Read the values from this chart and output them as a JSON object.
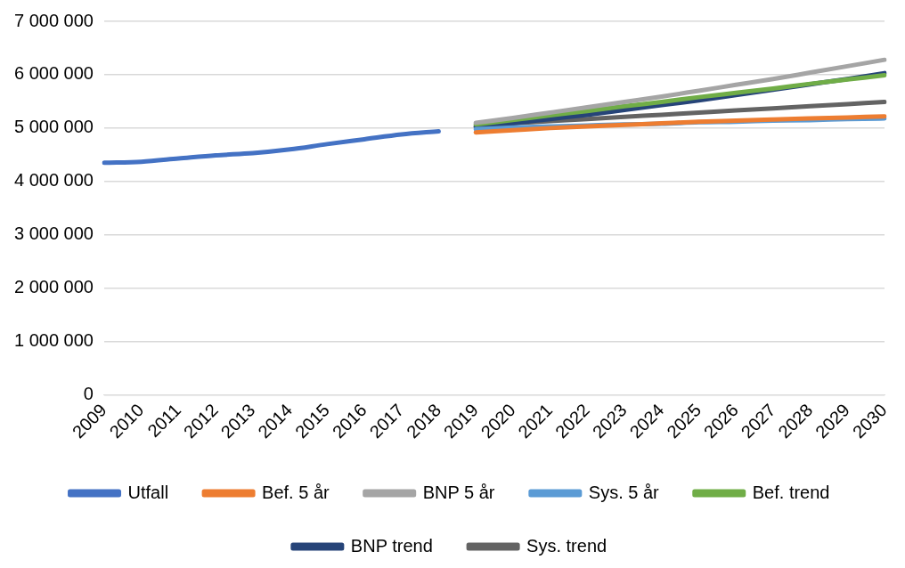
{
  "chart_data": {
    "type": "line",
    "categories": [
      "2009",
      "2010",
      "2011",
      "2012",
      "2013",
      "2014",
      "2015",
      "2016",
      "2017",
      "2018",
      "2019",
      "2020",
      "2021",
      "2022",
      "2023",
      "2024",
      "2025",
      "2026",
      "2027",
      "2028",
      "2029",
      "2030"
    ],
    "series": [
      {
        "name": "Utfall",
        "color": "#4472c4",
        "values": [
          4350000,
          4370000,
          4430000,
          4490000,
          4530000,
          4600000,
          4700000,
          4790000,
          4880000,
          4940000,
          null,
          null,
          null,
          null,
          null,
          null,
          null,
          null,
          null,
          null,
          null,
          null
        ]
      },
      {
        "name": "Bef. 5 år",
        "color": "#ed7d31",
        "values": [
          null,
          null,
          null,
          null,
          null,
          null,
          null,
          null,
          null,
          null,
          4920000,
          4960000,
          5000000,
          5030000,
          5060000,
          5090000,
          5120000,
          5140000,
          5160000,
          5180000,
          5200000,
          5220000
        ]
      },
      {
        "name": "BNP 5 år",
        "color": "#a5a5a5",
        "values": [
          null,
          null,
          null,
          null,
          null,
          null,
          null,
          null,
          null,
          null,
          5100000,
          5190000,
          5290000,
          5390000,
          5490000,
          5590000,
          5700000,
          5810000,
          5920000,
          6040000,
          6160000,
          6280000
        ]
      },
      {
        "name": "Sys. 5 år",
        "color": "#5b9bd5",
        "values": [
          null,
          null,
          null,
          null,
          null,
          null,
          null,
          null,
          null,
          null,
          4980000,
          5010000,
          5030000,
          5050000,
          5070000,
          5080000,
          5110000,
          5120000,
          5140000,
          5150000,
          5170000,
          5180000
        ]
      },
      {
        "name": "Bef. trend",
        "color": "#70ad47",
        "values": [
          null,
          null,
          null,
          null,
          null,
          null,
          null,
          null,
          null,
          null,
          5070000,
          5150000,
          5240000,
          5320000,
          5410000,
          5490000,
          5580000,
          5660000,
          5740000,
          5830000,
          5910000,
          5990000
        ]
      },
      {
        "name": "BNP trend",
        "color": "#264478",
        "values": [
          null,
          null,
          null,
          null,
          null,
          null,
          null,
          null,
          null,
          null,
          5020000,
          5090000,
          5170000,
          5250000,
          5340000,
          5430000,
          5520000,
          5620000,
          5720000,
          5820000,
          5920000,
          6030000
        ]
      },
      {
        "name": "Sys. trend",
        "color": "#636363",
        "values": [
          null,
          null,
          null,
          null,
          null,
          null,
          null,
          null,
          null,
          null,
          5040000,
          5090000,
          5130000,
          5170000,
          5210000,
          5250000,
          5290000,
          5330000,
          5370000,
          5410000,
          5450000,
          5490000
        ]
      }
    ],
    "ylim": [
      0,
      7000000
    ],
    "yticks": [
      {
        "value": 0,
        "label": "0"
      },
      {
        "value": 1000000,
        "label": "1 000 000"
      },
      {
        "value": 2000000,
        "label": "2 000 000"
      },
      {
        "value": 3000000,
        "label": "3 000 000"
      },
      {
        "value": 4000000,
        "label": "4 000 000"
      },
      {
        "value": 5000000,
        "label": "5 000 000"
      },
      {
        "value": 6000000,
        "label": "6 000 000"
      },
      {
        "value": 7000000,
        "label": "7 000 000"
      }
    ],
    "grid": "y",
    "legend": "bottom",
    "marker": "none",
    "line_style": "solid"
  }
}
